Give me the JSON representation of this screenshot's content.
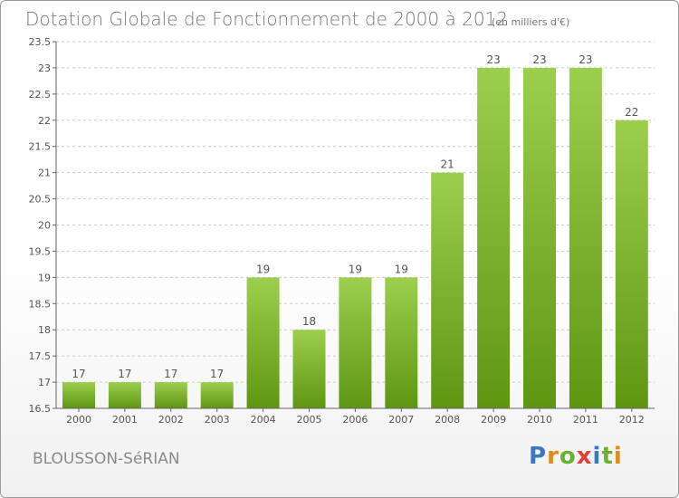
{
  "title": "Dotation Globale de Fonctionnement de 2000 à 2012",
  "unit_label": "(en milliers d'€)",
  "commune": "BLOUSSON-SéRIAN",
  "logo_text": "Proxiti",
  "colors": {
    "bar_top": "#9ccf4d",
    "bar_bottom": "#5e9612",
    "axis": "#666666",
    "grid": "#cccccc",
    "text": "#777777"
  },
  "chart_data": {
    "type": "bar",
    "title": "Dotation Globale de Fonctionnement de 2000 à 2012",
    "subtitle": "(en milliers d'€)",
    "xlabel": "",
    "ylabel": "",
    "categories": [
      "2000",
      "2001",
      "2002",
      "2003",
      "2004",
      "2005",
      "2006",
      "2007",
      "2008",
      "2009",
      "2010",
      "2011",
      "2012"
    ],
    "values": [
      17,
      17,
      17,
      17,
      19,
      18,
      19,
      19,
      21,
      23,
      23,
      23,
      22
    ],
    "data_labels": [
      "17",
      "17",
      "17",
      "17",
      "19",
      "18",
      "19",
      "19",
      "21",
      "23",
      "23",
      "23",
      "22"
    ],
    "ylim": [
      16.5,
      23.5
    ],
    "yticks": [
      16.5,
      17,
      17.5,
      18,
      18.5,
      19,
      19.5,
      20,
      20.5,
      21,
      21.5,
      22,
      22.5,
      23,
      23.5
    ],
    "ytick_labels": [
      "16.5",
      "17",
      "17.5",
      "18",
      "18.5",
      "19",
      "19.5",
      "20",
      "20.5",
      "21",
      "21.5",
      "22",
      "22.5",
      "23",
      "23.5"
    ],
    "grid": "horizontal dashed",
    "legend": "none"
  }
}
